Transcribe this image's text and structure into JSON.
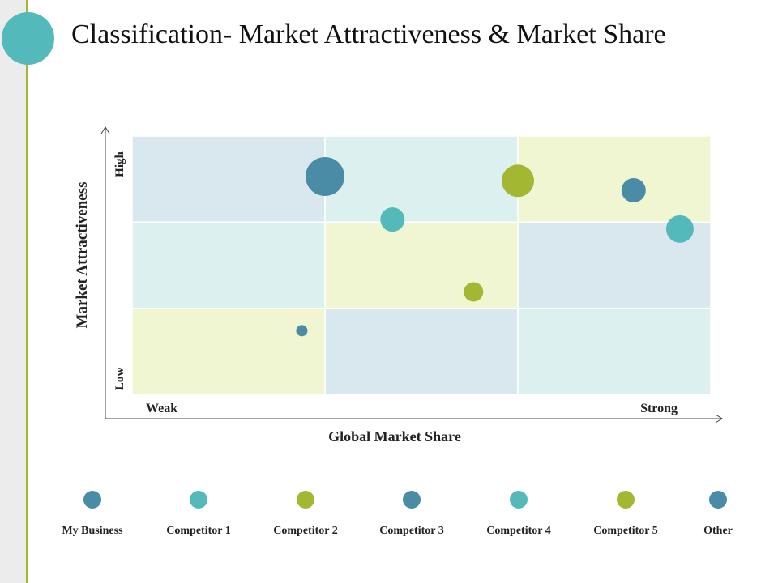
{
  "title": "Classification- Market Attractiveness & Market Share",
  "colors": {
    "accent_green": "#a3b733",
    "accent_teal": "#53b9bb",
    "accent_blue": "#4a8ca6"
  },
  "chart_data": {
    "type": "scatter",
    "xlabel": "Global Market Share",
    "ylabel": "Market Attractiveness",
    "x_tick_labels": [
      "Weak",
      "Strong"
    ],
    "y_tick_labels": [
      "Low",
      "High"
    ],
    "xlim": [
      0,
      3
    ],
    "ylim": [
      0,
      3
    ],
    "grid": "3x3",
    "cell_colors": [
      [
        "#d9e8ee",
        "#dcf0f0",
        "#f0f5d2"
      ],
      [
        "#dcf0f0",
        "#f0f5d2",
        "#d9e8ee"
      ],
      [
        "#f0f5d2",
        "#d9e8ee",
        "#dcf0f0"
      ]
    ],
    "points": [
      {
        "x": 1.0,
        "y": 2.53,
        "size": 24,
        "color": "#4a8ca6"
      },
      {
        "x": 1.35,
        "y": 2.03,
        "size": 15,
        "color": "#53b9bb"
      },
      {
        "x": 2.0,
        "y": 2.48,
        "size": 20,
        "color": "#a3b733"
      },
      {
        "x": 2.6,
        "y": 2.37,
        "size": 15,
        "color": "#4a8ca6"
      },
      {
        "x": 2.84,
        "y": 1.92,
        "size": 17,
        "color": "#53b9bb"
      },
      {
        "x": 1.77,
        "y": 1.19,
        "size": 12,
        "color": "#a3b733"
      },
      {
        "x": 0.88,
        "y": 0.74,
        "size": 7,
        "color": "#4a8ca6"
      }
    ]
  },
  "legend": [
    {
      "label": "My Business",
      "color": "#4a8ca6"
    },
    {
      "label": "Competitor 1",
      "color": "#53b9bb"
    },
    {
      "label": "Competitor 2",
      "color": "#a3b733"
    },
    {
      "label": "Competitor 3",
      "color": "#4a8ca6"
    },
    {
      "label": "Competitor 4",
      "color": "#53b9bb"
    },
    {
      "label": "Competitor 5",
      "color": "#a3b733"
    },
    {
      "label": "Other",
      "color": "#4a8ca6"
    }
  ]
}
